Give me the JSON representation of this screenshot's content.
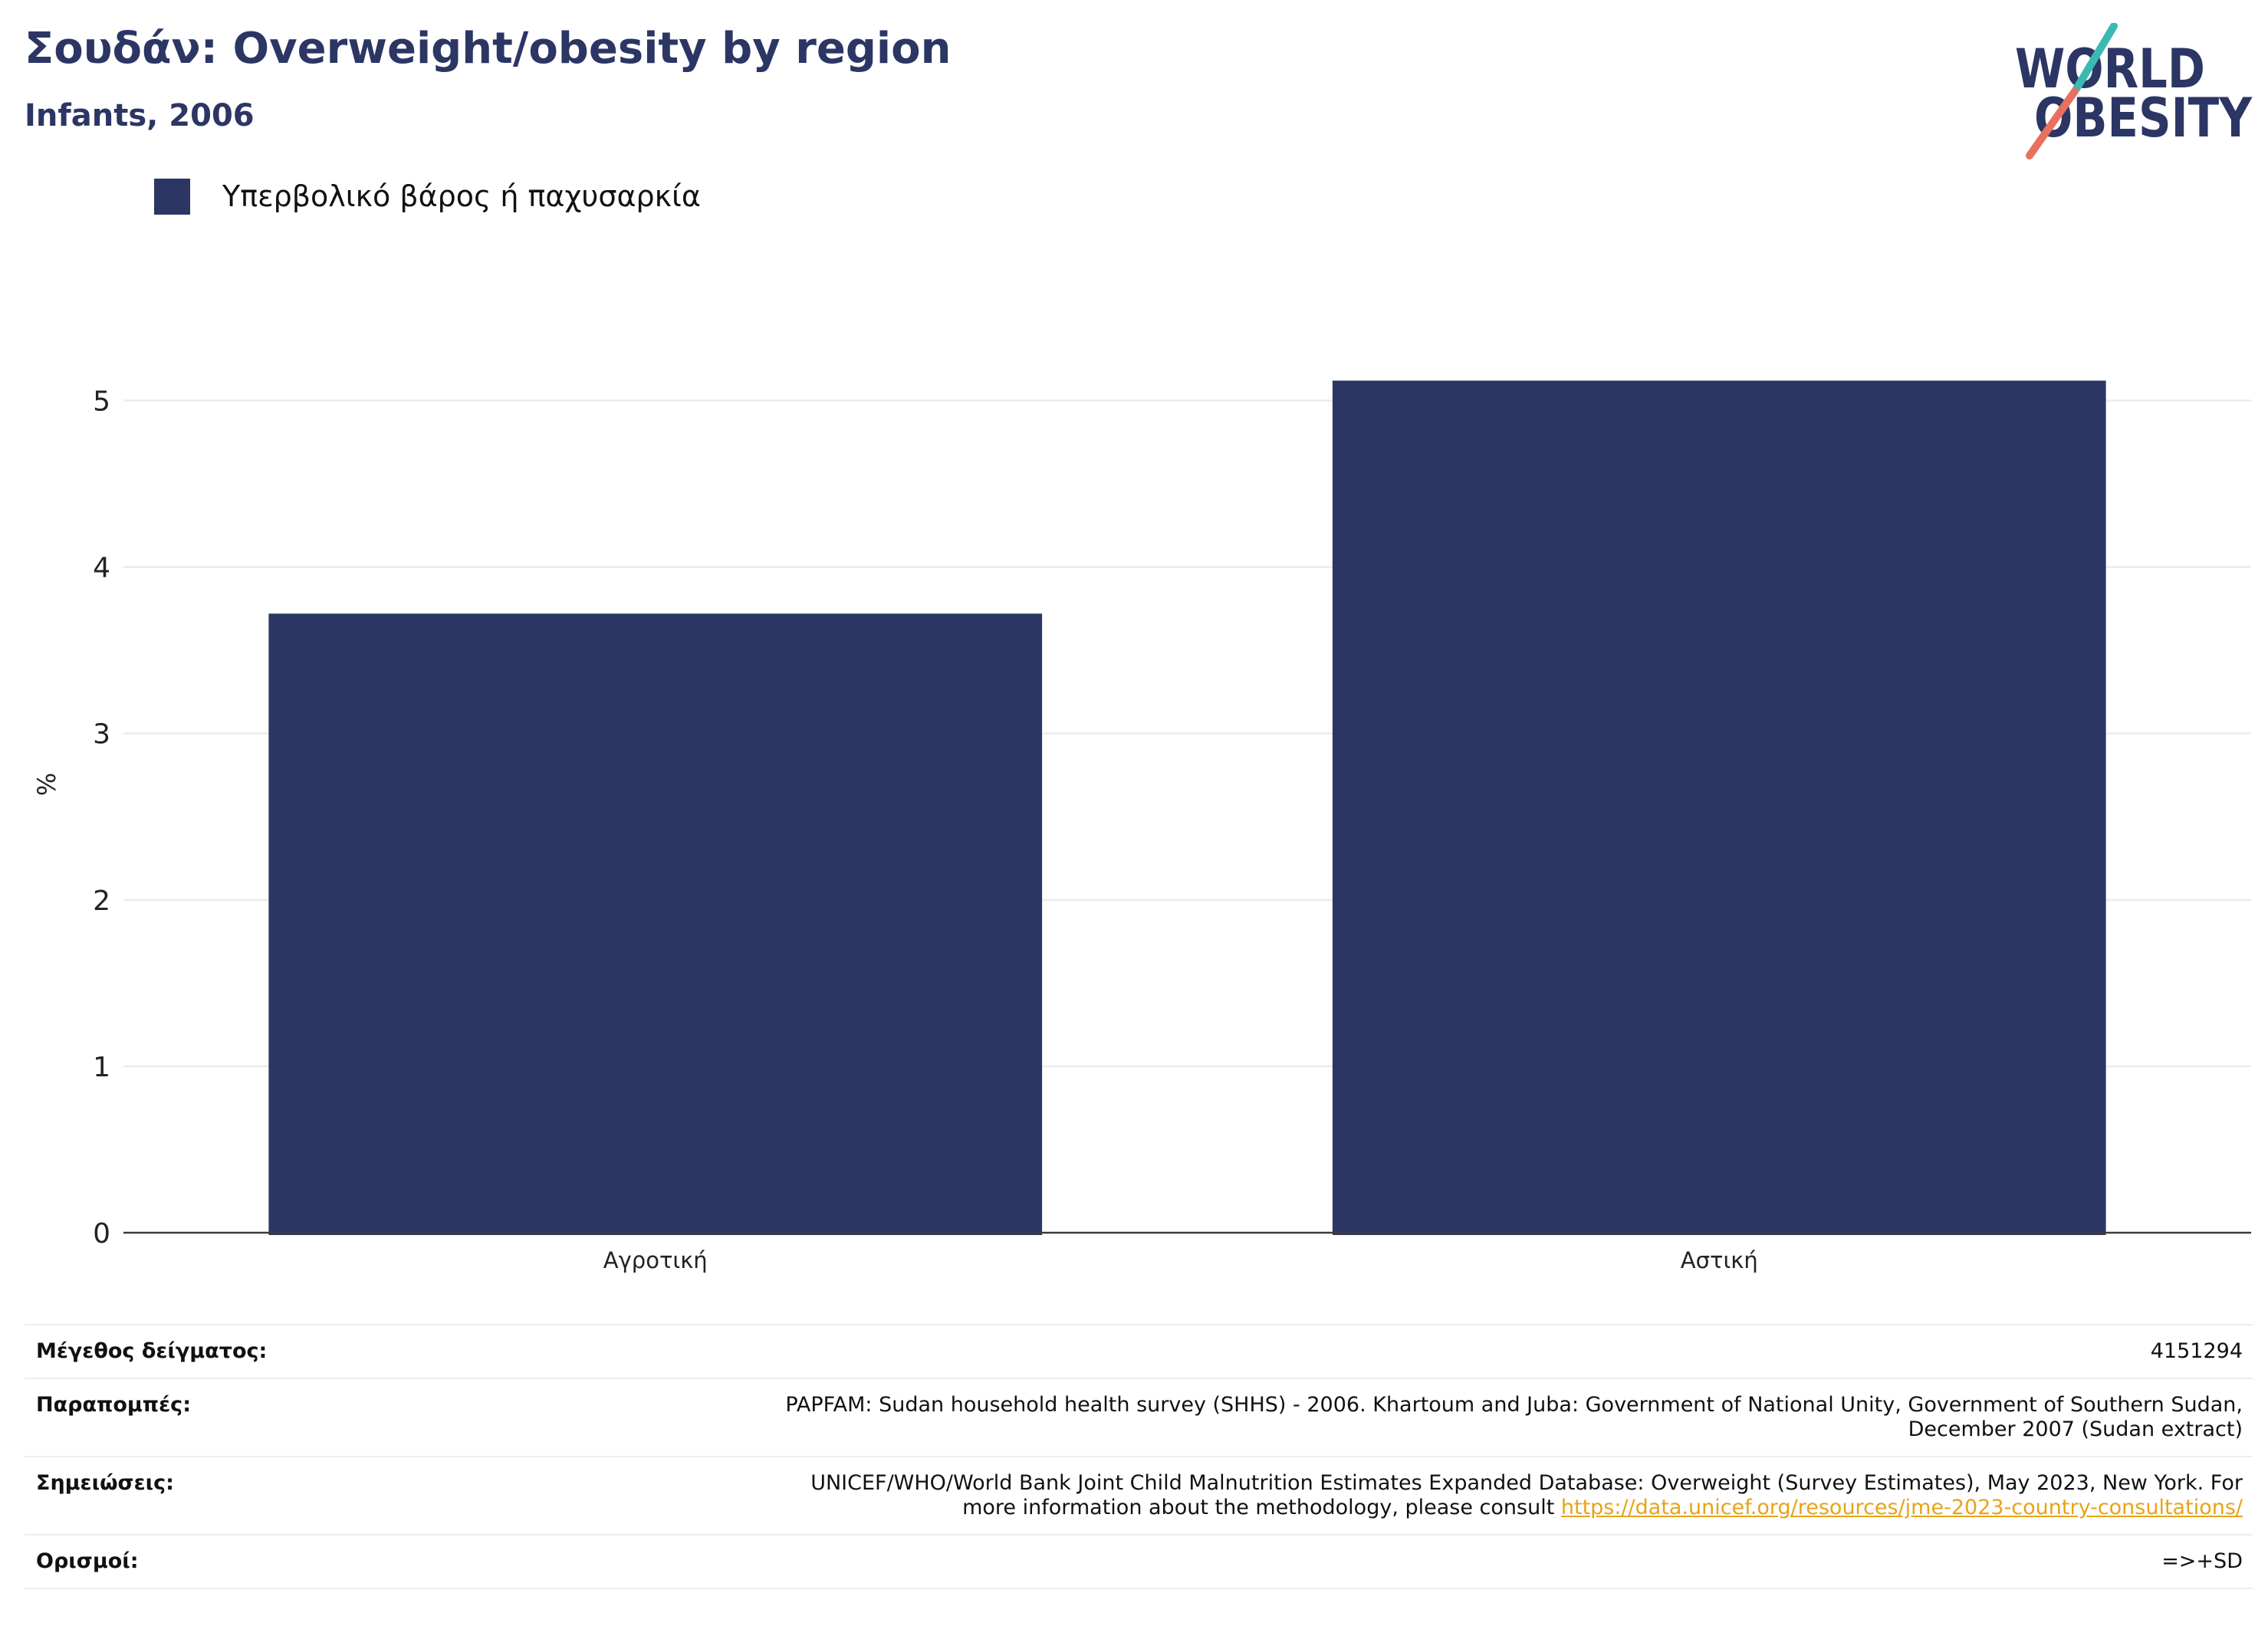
{
  "logo": {
    "line1": "WORLD",
    "line2": "OBESITY",
    "colors": {
      "text": "#2b3664",
      "slash_top": "#3bb9b3",
      "slash_bottom": "#e8705f"
    }
  },
  "chart_data": {
    "type": "bar",
    "title": "Σουδάν: Overweight/obesity by region",
    "subtitle": "Infants, 2006",
    "categories": [
      "Αγροτική",
      "Αστική"
    ],
    "series": [
      {
        "name": "Υπερβολικό βάρος ή παχυσαρκία",
        "values": [
          3.72,
          5.12
        ],
        "color": "#2b3664"
      }
    ],
    "xlabel": "",
    "ylabel": "%",
    "ylim": [
      0,
      5.5
    ],
    "yticks": [
      0,
      1,
      2,
      3,
      4,
      5
    ],
    "grid": true,
    "legend": "top-left"
  },
  "footer": {
    "rows": [
      {
        "label": "Μέγεθος δείγματος:",
        "value_lines": [
          "4151294"
        ]
      },
      {
        "label": "Παραπομπές:",
        "value_lines": [
          "PAPFAM: Sudan household health survey (SHHS) - 2006. Khartoum and Juba: Government of National Unity, Government of Southern Sudan,",
          "December 2007 (Sudan extract)"
        ]
      },
      {
        "label": "Σημειώσεις:",
        "value_lines": [
          "UNICEF/WHO/World Bank Joint Child Malnutrition Estimates Expanded Database: Overweight (Survey Estimates), May 2023, New York. For",
          "more information about the methodology, please consult"
        ],
        "link": "https://data.unicef.org/resources/jme-2023-country-consultations/"
      },
      {
        "label": "Ορισμοί:",
        "value_lines": [
          "=>+SD"
        ]
      }
    ]
  },
  "colors": {
    "link": "#e8a317",
    "grid": "#ebebf0",
    "axis": "#3c3c3c",
    "title": "#2b3664"
  }
}
